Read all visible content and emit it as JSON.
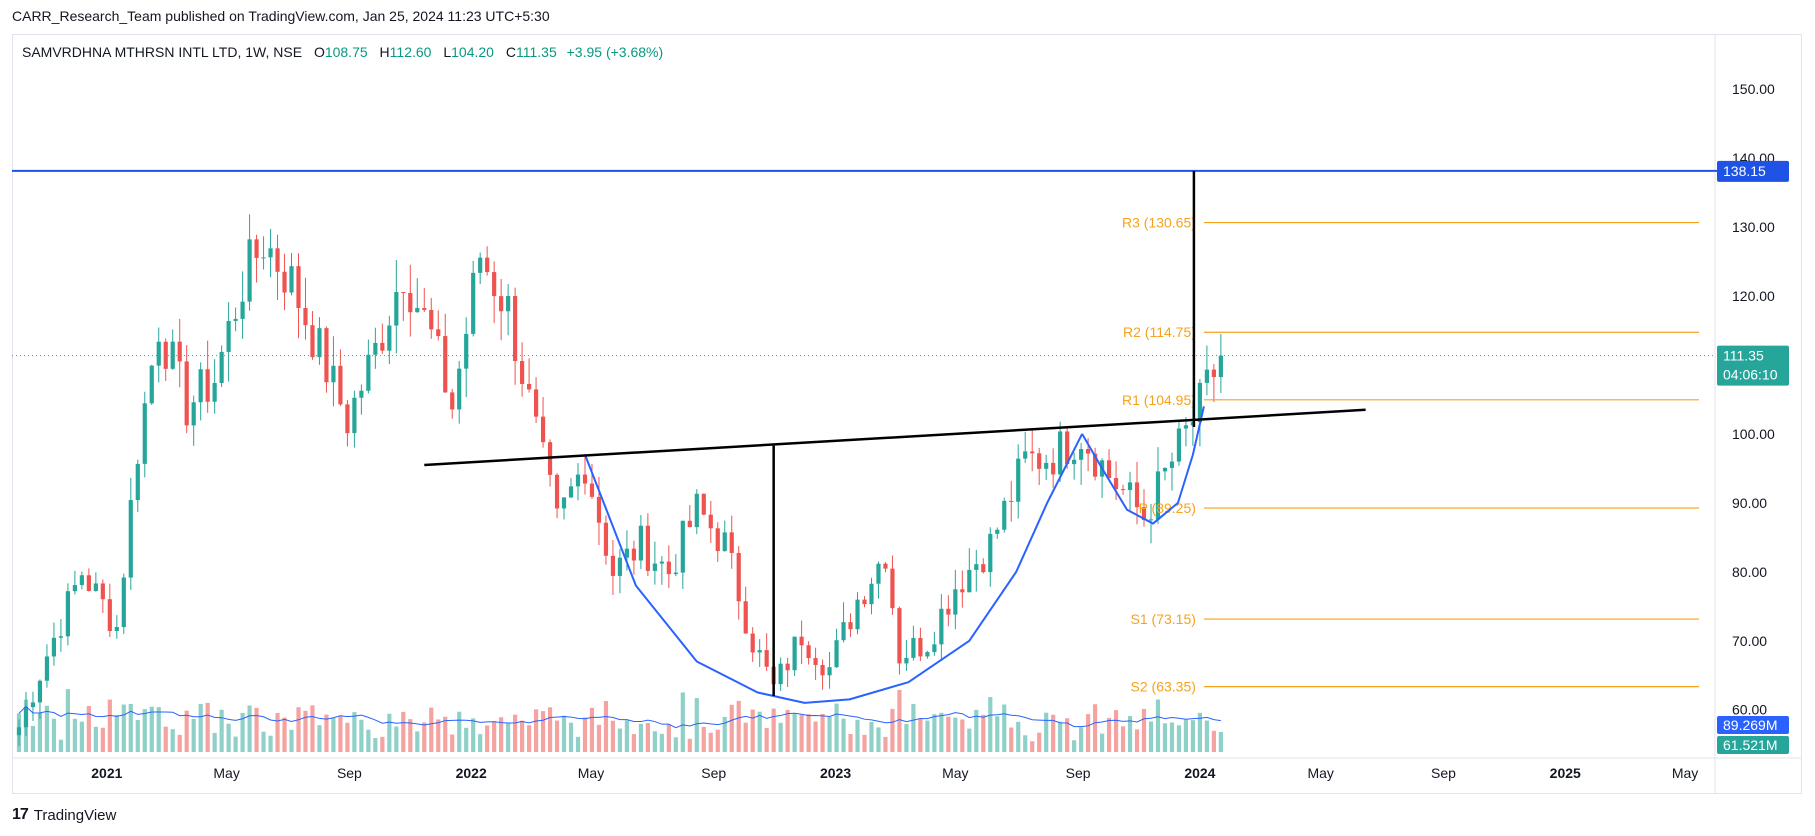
{
  "header": {
    "publisher": "CARR_Research_Team published on TradingView.com, Jan 25, 2024 11:23 UTC+5:30"
  },
  "legend": {
    "symbol": "SAMVRDHNA MTHRSN INTL LTD, 1W, NSE",
    "open_label": "O",
    "open": "108.75",
    "high_label": "H",
    "high": "112.60",
    "low_label": "L",
    "low": "104.20",
    "close_label": "C",
    "close": "111.35",
    "change": "+3.95 (+3.68%)"
  },
  "footer": {
    "brand": "TradingView",
    "logo_text": "17"
  },
  "colors": {
    "up": "#26a69a",
    "down": "#ef5350",
    "vol_up": "#8fd1c9",
    "vol_down": "#f5a3a1",
    "resistance": "#1e53e5",
    "pivot": "#f7a21b",
    "cup": "#2962ff",
    "neckline": "#000000",
    "vol_ma": "#2962ff"
  },
  "chart_data": {
    "type": "candlestick",
    "interval": "1W",
    "x_range": [
      "2020-09-28",
      "2025-05-31"
    ],
    "ylim": [
      53,
      158
    ],
    "y_ticks": [
      60,
      70,
      80,
      90,
      100,
      110,
      120,
      130,
      140,
      150
    ],
    "y_tick_labels": [
      "60.00",
      "70.00",
      "80.00",
      "90.00",
      "100.00",
      "110.00",
      "120.00",
      "130.00",
      "140.00",
      "150.00"
    ],
    "x_ticks": [
      {
        "date": "2021-01-01",
        "label": "2021",
        "bold": true
      },
      {
        "date": "2021-05-01",
        "label": "May"
      },
      {
        "date": "2021-09-01",
        "label": "Sep"
      },
      {
        "date": "2022-01-01",
        "label": "2022",
        "bold": true
      },
      {
        "date": "2022-05-01",
        "label": "May"
      },
      {
        "date": "2022-09-01",
        "label": "Sep"
      },
      {
        "date": "2023-01-01",
        "label": "2023",
        "bold": true
      },
      {
        "date": "2023-05-01",
        "label": "May"
      },
      {
        "date": "2023-09-01",
        "label": "Sep"
      },
      {
        "date": "2024-01-01",
        "label": "2024",
        "bold": true
      },
      {
        "date": "2024-05-01",
        "label": "May"
      },
      {
        "date": "2024-09-01",
        "label": "Sep"
      },
      {
        "date": "2025-01-01",
        "label": "2025",
        "bold": true
      },
      {
        "date": "2025-05-01",
        "label": "May"
      }
    ],
    "last_price": {
      "value": 111.35,
      "label": "111.35",
      "countdown": "04:06:10"
    },
    "resistance": {
      "value": 138.15,
      "label": "138.15"
    },
    "volume_labels": {
      "upper": "89.269M",
      "lower": "61.521M"
    },
    "pivot_levels": [
      {
        "name": "R3",
        "value": 130.65,
        "label": "R3 (130.65)"
      },
      {
        "name": "R2",
        "value": 114.75,
        "label": "R2 (114.75)"
      },
      {
        "name": "R1",
        "value": 104.95,
        "label": "R1 (104.95)"
      },
      {
        "name": "P",
        "value": 89.25,
        "label": "P (89.25)"
      },
      {
        "name": "S1",
        "value": 73.15,
        "label": "S1 (73.15)"
      },
      {
        "name": "S2",
        "value": 63.35,
        "label": "S2 (63.35)"
      }
    ],
    "pivot_x_range": [
      "2024-01-01",
      "2025-05-31"
    ],
    "neckline": [
      [
        "2021-11-15",
        95.5
      ],
      [
        "2024-06-15",
        103.5
      ]
    ],
    "cup_depth_line": {
      "date": "2022-10-31",
      "from": 62,
      "to": 98.3
    },
    "target_line": {
      "date": "2024-01-01",
      "from": 101,
      "to": 138.15
    },
    "cup_curve": [
      [
        "2022-04-25",
        97
      ],
      [
        "2022-06-15",
        78
      ],
      [
        "2022-08-15",
        67
      ],
      [
        "2022-10-15",
        62.5
      ],
      [
        "2022-12-01",
        61
      ],
      [
        "2023-01-15",
        61.5
      ],
      [
        "2023-03-15",
        64
      ],
      [
        "2023-05-15",
        70
      ],
      [
        "2023-07-01",
        80
      ],
      [
        "2023-08-01",
        90
      ],
      [
        "2023-09-05",
        100
      ]
    ],
    "handle_curve": [
      [
        "2023-09-05",
        100
      ],
      [
        "2023-09-25",
        95
      ],
      [
        "2023-10-20",
        89
      ],
      [
        "2023-11-15",
        87
      ],
      [
        "2023-12-10",
        90
      ],
      [
        "2023-12-25",
        97
      ],
      [
        "2024-01-05",
        104
      ]
    ],
    "weekly_close": [
      {
        "date": "2020-10-05",
        "close": 57.5
      },
      {
        "date": "2020-11-02",
        "close": 68
      },
      {
        "date": "2020-12-07",
        "close": 80
      },
      {
        "date": "2021-01-11",
        "close": 72
      },
      {
        "date": "2021-02-01",
        "close": 98
      },
      {
        "date": "2021-02-22",
        "close": 116
      },
      {
        "date": "2021-03-22",
        "close": 104
      },
      {
        "date": "2021-04-19",
        "close": 108
      },
      {
        "date": "2021-05-17",
        "close": 122
      },
      {
        "date": "2021-06-07",
        "close": 128
      },
      {
        "date": "2021-07-05",
        "close": 122
      },
      {
        "date": "2021-08-02",
        "close": 112
      },
      {
        "date": "2021-08-30",
        "close": 102
      },
      {
        "date": "2021-09-27",
        "close": 112
      },
      {
        "date": "2021-10-25",
        "close": 124
      },
      {
        "date": "2021-11-22",
        "close": 114
      },
      {
        "date": "2021-12-13",
        "close": 104
      },
      {
        "date": "2022-01-10",
        "close": 126
      },
      {
        "date": "2022-02-07",
        "close": 118
      },
      {
        "date": "2022-03-07",
        "close": 100
      },
      {
        "date": "2022-03-28",
        "close": 87
      },
      {
        "date": "2022-04-25",
        "close": 96
      },
      {
        "date": "2022-05-23",
        "close": 80
      },
      {
        "date": "2022-06-20",
        "close": 84
      },
      {
        "date": "2022-07-18",
        "close": 80
      },
      {
        "date": "2022-08-15",
        "close": 89
      },
      {
        "date": "2022-09-12",
        "close": 84
      },
      {
        "date": "2022-10-10",
        "close": 70
      },
      {
        "date": "2022-10-31",
        "close": 63
      },
      {
        "date": "2022-11-28",
        "close": 71
      },
      {
        "date": "2022-12-26",
        "close": 66
      },
      {
        "date": "2023-01-23",
        "close": 76
      },
      {
        "date": "2023-02-20",
        "close": 83
      },
      {
        "date": "2023-03-06",
        "close": 68
      },
      {
        "date": "2023-04-03",
        "close": 70
      },
      {
        "date": "2023-05-01",
        "close": 78
      },
      {
        "date": "2023-06-05",
        "close": 84
      },
      {
        "date": "2023-07-10",
        "close": 96
      },
      {
        "date": "2023-08-07",
        "close": 97
      },
      {
        "date": "2023-09-04",
        "close": 100
      },
      {
        "date": "2023-10-02",
        "close": 94
      },
      {
        "date": "2023-11-06",
        "close": 88
      },
      {
        "date": "2023-12-04",
        "close": 96
      },
      {
        "date": "2024-01-01",
        "close": 104
      },
      {
        "date": "2024-01-22",
        "close": 111.35
      }
    ]
  }
}
